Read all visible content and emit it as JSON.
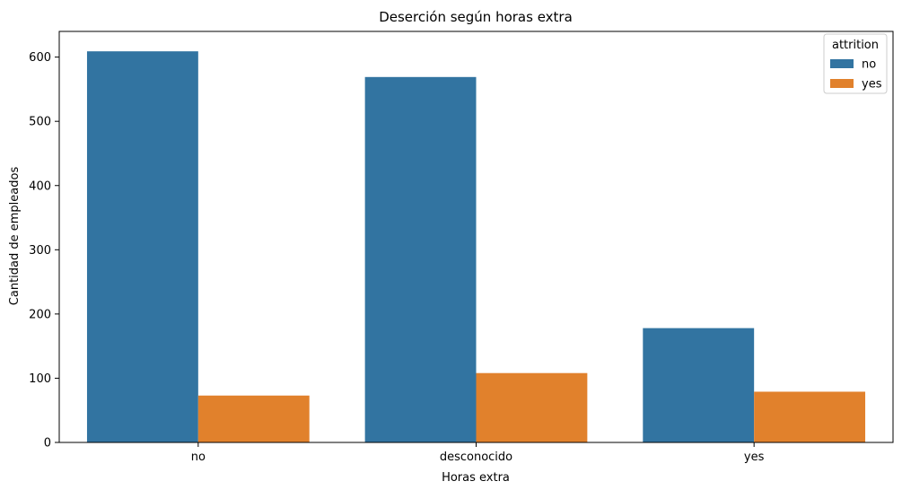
{
  "chart_data": {
    "type": "bar",
    "title": "Deserción según horas extra",
    "xlabel": "Horas extra",
    "ylabel": "Cantidad de empleados",
    "categories": [
      "no",
      "desconocido",
      "yes"
    ],
    "series": [
      {
        "name": "no",
        "values": [
          609,
          569,
          178
        ],
        "color": "#3274a1"
      },
      {
        "name": "yes",
        "values": [
          73,
          108,
          79
        ],
        "color": "#e1812c"
      }
    ],
    "ylim": [
      0,
      640
    ],
    "yticks": [
      0,
      100,
      200,
      300,
      400,
      500,
      600
    ],
    "legend": {
      "title": "attrition",
      "position": "top-right"
    },
    "grid": false
  }
}
